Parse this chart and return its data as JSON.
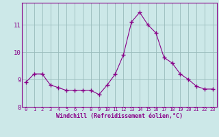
{
  "x": [
    0,
    1,
    2,
    3,
    4,
    5,
    6,
    7,
    8,
    9,
    10,
    11,
    12,
    13,
    14,
    15,
    16,
    17,
    18,
    19,
    20,
    21,
    22,
    23
  ],
  "y": [
    8.9,
    9.2,
    9.2,
    8.8,
    8.7,
    8.6,
    8.6,
    8.6,
    8.6,
    8.45,
    8.8,
    9.2,
    9.9,
    11.1,
    11.45,
    11.0,
    10.7,
    9.8,
    9.6,
    9.2,
    9.0,
    8.75,
    8.65,
    8.65
  ],
  "line_color": "#880088",
  "marker_color": "#880088",
  "bg_color": "#cce8e8",
  "grid_color": "#99bbbb",
  "xlabel": "Windchill (Refroidissement éolien,°C)",
  "xlabel_color": "#880088",
  "tick_color": "#880088",
  "ylim": [
    8.0,
    11.8
  ],
  "yticks": [
    8,
    9,
    10,
    11
  ],
  "xticks": [
    0,
    1,
    2,
    3,
    4,
    5,
    6,
    7,
    8,
    9,
    10,
    11,
    12,
    13,
    14,
    15,
    16,
    17,
    18,
    19,
    20,
    21,
    22,
    23
  ],
  "spine_color": "#880088"
}
